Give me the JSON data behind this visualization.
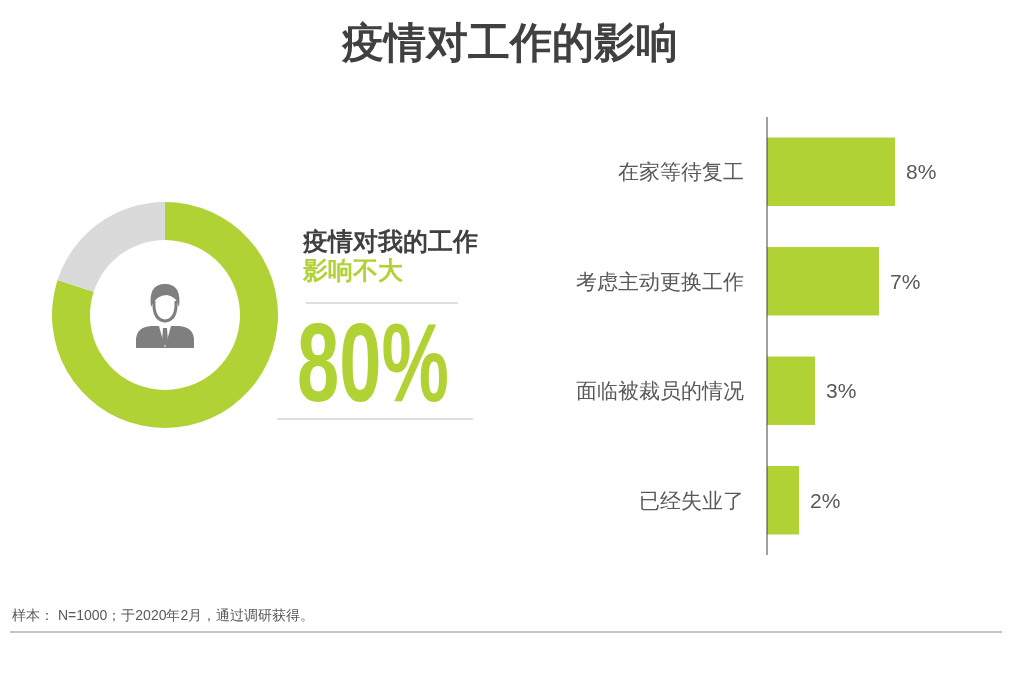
{
  "chart_data": [
    {
      "type": "donut",
      "title": "疫情对工作的影响",
      "subtitle": "疫情对我的工作",
      "categories": [
        "影响不大",
        null
      ],
      "values": [
        80,
        20
      ],
      "colors": [
        "#b1d235",
        "#dadada"
      ],
      "value_labels": [
        "80%",
        null
      ],
      "annotations": [
        "样本： N=1000；于2020年2月，通过调研获得。"
      ]
    },
    {
      "type": "bar",
      "orientation": "horizontal",
      "categories": [
        "在家等待复工",
        "考虑主动更换工作",
        "面临被裁员的情况",
        "已经失业了"
      ],
      "values": [
        8,
        7,
        3,
        2
      ],
      "color": "#b1d235",
      "value_labels": [
        "8%",
        "7%",
        "3%",
        "2%"
      ]
    }
  ]
}
